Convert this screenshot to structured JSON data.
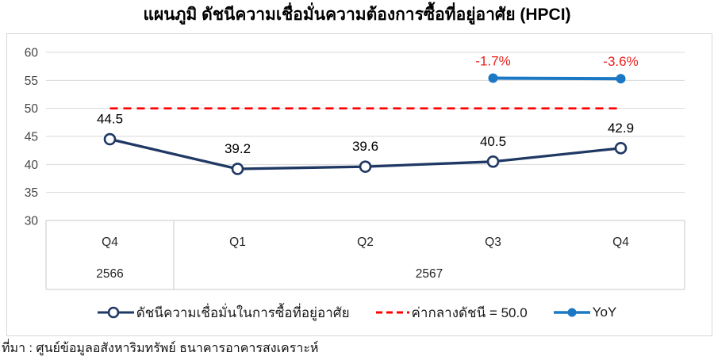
{
  "title": "แผนภูมิ ดัชนีความเชื่อมั่นความต้องการซื้อที่อยู่อาศัย (HPCI)",
  "source_note": "ที่มา : ศูนย์ข้อมูลอสังหาริมทรัพย์ ธนาคารอาคารสงเคราะห์",
  "colors": {
    "index_line": "#1F3864",
    "midline_red": "#FF0000",
    "yoy_line": "#1B78C4",
    "yoy_label_red": "#E8211D",
    "grid": "#D9D9D9",
    "table_border": "#C9C9C9",
    "axis_text": "#444444",
    "label_text": "#000000",
    "title_text": "#000000",
    "background": "#FFFFFF"
  },
  "chart_data": {
    "type": "line",
    "title": "แผนภูมิ ดัชนีความเชื่อมั่นความต้องการซื้อที่อยู่อาศัย (HPCI)",
    "categories": [
      "Q4",
      "Q1",
      "Q2",
      "Q3",
      "Q4"
    ],
    "year_groups": [
      {
        "label": "2566",
        "span": 1
      },
      {
        "label": "2567",
        "span": 4
      }
    ],
    "ylim": [
      30,
      60
    ],
    "ytick_step": 5,
    "yticks": [
      30,
      35,
      40,
      45,
      50,
      55,
      60
    ],
    "grid": true,
    "legend_position": "bottom",
    "series": [
      {
        "name": "ดัชนีความเชื่อมั่นในการซื้อที่อยู่อาศัย",
        "type": "line",
        "values": [
          44.5,
          39.2,
          39.6,
          40.5,
          42.9
        ],
        "labels": [
          "44.5",
          "39.2",
          "39.6",
          "40.5",
          "42.9"
        ],
        "color": "#1F3864",
        "marker": "open-circle",
        "label_color": "#000000",
        "label_dy": -20
      },
      {
        "name": "ค่ากลางดัชนี = 50.0",
        "type": "dashed-constant",
        "value": 50.0,
        "color": "#FF0000"
      },
      {
        "name": "YoY",
        "type": "line",
        "values": [
          null,
          null,
          null,
          -1.7,
          -3.6
        ],
        "labels": [
          null,
          null,
          null,
          "-1.7%",
          "-3.6%"
        ],
        "plot_values": [
          null,
          null,
          null,
          55.4,
          55.3
        ],
        "color": "#1B78C4",
        "marker": "filled-circle",
        "label_color": "#E8211D",
        "label_dy": -16
      }
    ]
  }
}
